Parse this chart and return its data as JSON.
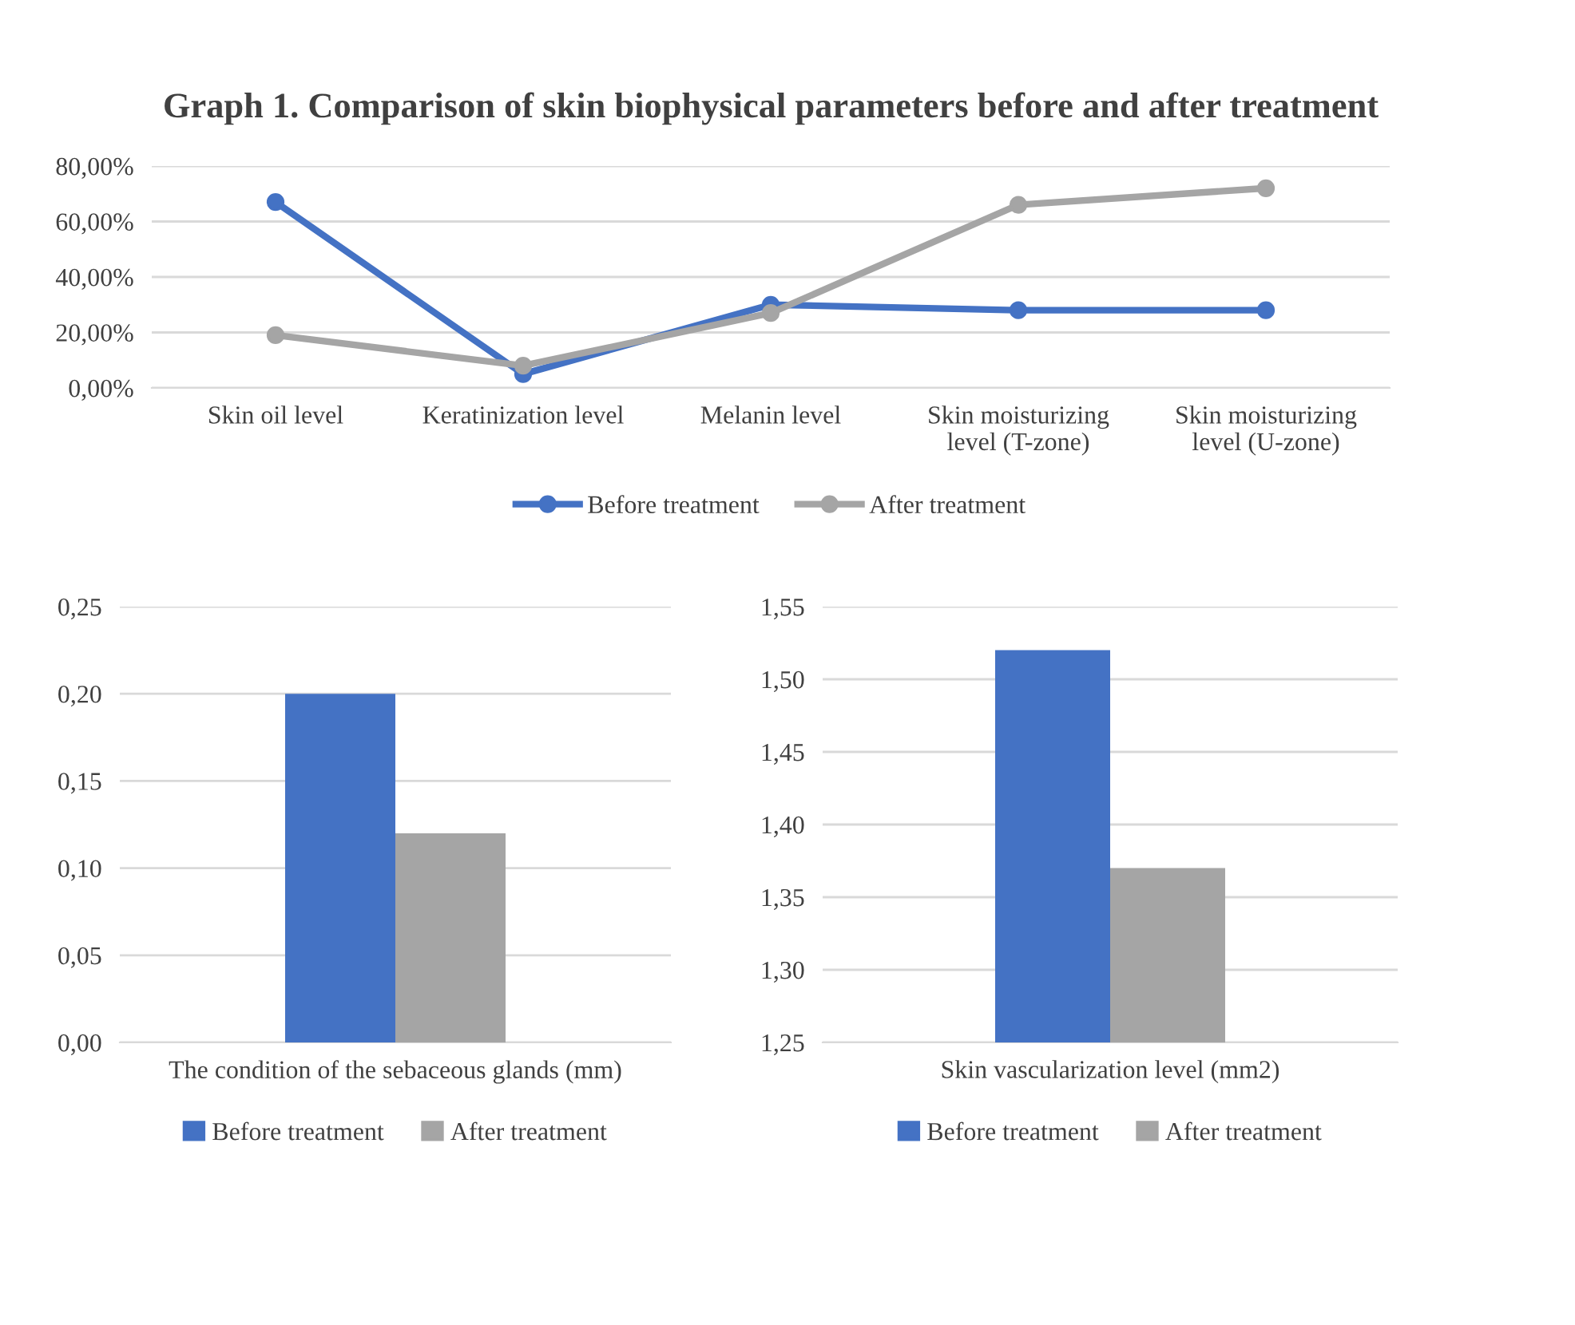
{
  "chart_data": [
    {
      "type": "line",
      "title": "Graph 1. Comparison of skin biophysical parameters before and after treatment",
      "categories": [
        "Skin oil level",
        "Keratinization level",
        "Melanin level",
        "Skin moisturizing\nlevel (T-zone)",
        "Skin moisturizing\nlevel (U-zone)"
      ],
      "series": [
        {
          "name": "Before treatment",
          "color": "#4472c4",
          "values": [
            67,
            5,
            30,
            28,
            28
          ]
        },
        {
          "name": "After treatment",
          "color": "#a5a5a5",
          "values": [
            19,
            8,
            27,
            66,
            72
          ]
        }
      ],
      "ylim": [
        0,
        80
      ],
      "yticks": [
        {
          "value": 0,
          "label": "0,00%"
        },
        {
          "value": 20,
          "label": "20,00%"
        },
        {
          "value": 40,
          "label": "40,00%"
        },
        {
          "value": 60,
          "label": "60,00%"
        },
        {
          "value": 80,
          "label": "80,00%"
        }
      ],
      "grid": "y",
      "legend": "bottom",
      "marker": "circle",
      "line_style": "solid"
    },
    {
      "type": "bar",
      "categories": [
        "The condition of the sebaceous glands (mm)"
      ],
      "series": [
        {
          "name": "Before treatment",
          "color": "#4472c4",
          "values": [
            0.2
          ]
        },
        {
          "name": "After treatment",
          "color": "#a5a5a5",
          "values": [
            0.12
          ]
        }
      ],
      "ylim": [
        0,
        0.25
      ],
      "yticks": [
        {
          "value": 0,
          "label": "0,00"
        },
        {
          "value": 0.05,
          "label": "0,05"
        },
        {
          "value": 0.1,
          "label": "0,10"
        },
        {
          "value": 0.15,
          "label": "0,15"
        },
        {
          "value": 0.2,
          "label": "0,20"
        },
        {
          "value": 0.25,
          "label": "0,25"
        }
      ],
      "grid": "y",
      "legend": "bottom"
    },
    {
      "type": "bar",
      "categories": [
        "Skin vascularization level (mm2)"
      ],
      "series": [
        {
          "name": "Before treatment",
          "color": "#4472c4",
          "values": [
            1.52
          ]
        },
        {
          "name": "After treatment",
          "color": "#a5a5a5",
          "values": [
            1.37
          ]
        }
      ],
      "ylim": [
        1.25,
        1.55
      ],
      "yticks": [
        {
          "value": 1.25,
          "label": "1,25"
        },
        {
          "value": 1.3,
          "label": "1,30"
        },
        {
          "value": 1.35,
          "label": "1,35"
        },
        {
          "value": 1.4,
          "label": "1,40"
        },
        {
          "value": 1.45,
          "label": "1,45"
        },
        {
          "value": 1.5,
          "label": "1,50"
        },
        {
          "value": 1.55,
          "label": "1,55"
        }
      ],
      "grid": "y",
      "legend": "bottom"
    }
  ]
}
